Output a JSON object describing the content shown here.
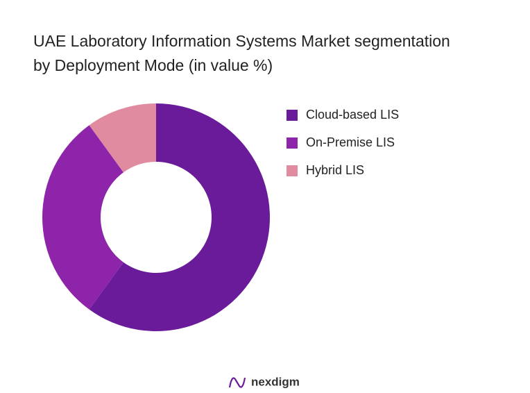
{
  "chart_data": {
    "type": "pie",
    "title": "UAE Laboratory Information Systems Market segmentation by Deployment Mode (in value %)",
    "categories": [
      "Cloud-based LIS",
      "On-Premise LIS",
      "Hybrid LIS"
    ],
    "values": [
      60,
      30,
      10
    ],
    "colors": [
      "#6a1b9a",
      "#8e24aa",
      "#e08ba0"
    ],
    "donut": true,
    "legend": "right",
    "brand": "nexdigm"
  }
}
